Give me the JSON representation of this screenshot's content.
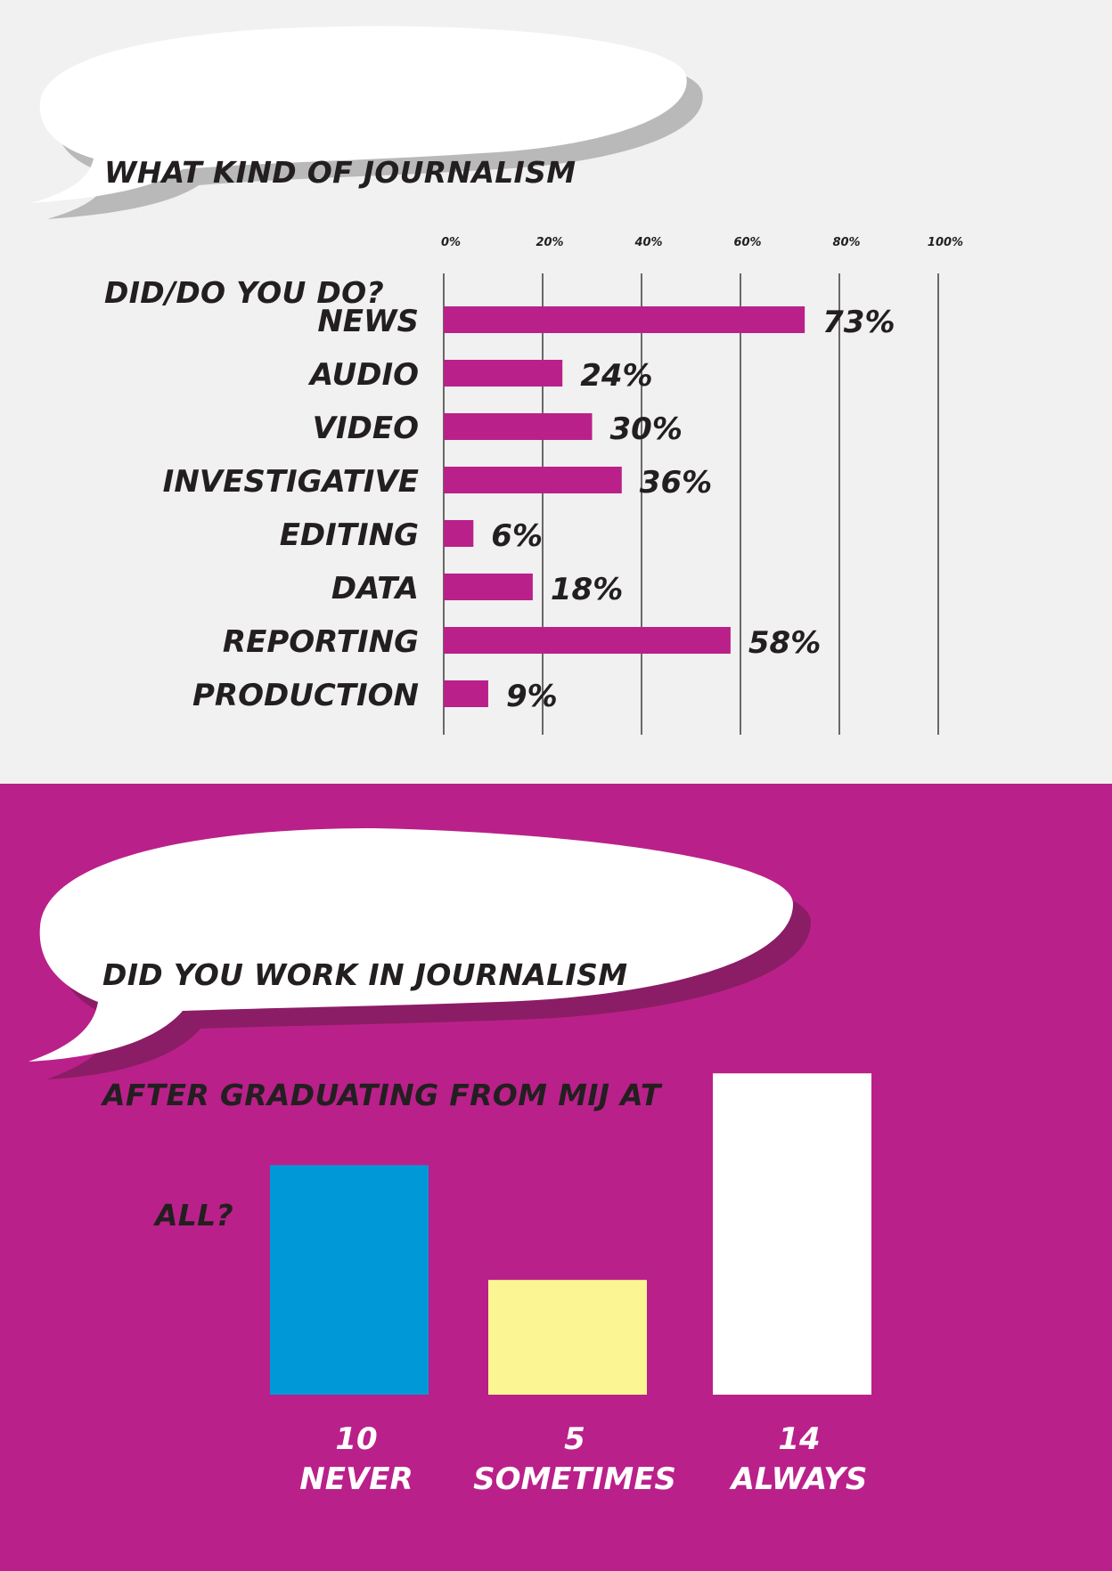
{
  "colors": {
    "top_background": "#f0f1f0",
    "bottom_background": "#ba208a",
    "bar_magenta": "#ba208a",
    "bubble": "#ffffff",
    "text": "#231f20"
  },
  "question1": {
    "lines": [
      "WHAT KIND OF JOURNALISM",
      "DID/DO YOU DO?"
    ]
  },
  "question2": {
    "lines": [
      "DID YOU WORK IN JOURNALISM",
      "AFTER GRADUATING FROM MIJ AT",
      "     ALL?"
    ]
  },
  "chart_data": [
    {
      "type": "bar",
      "orientation": "horizontal",
      "categories": [
        "NEWS",
        "AUDIO",
        "VIDEO",
        "INVESTIGATIVE",
        "EDITING",
        "DATA",
        "REPORTING",
        "PRODUCTION"
      ],
      "values": [
        73,
        24,
        30,
        36,
        6,
        18,
        58,
        9
      ],
      "value_labels": [
        "73%",
        "24%",
        "30%",
        "36%",
        "6%",
        "18%",
        "58%",
        "9%"
      ],
      "xlim": [
        0,
        100
      ],
      "xticks": [
        0,
        20,
        40,
        60,
        80,
        100
      ],
      "xtick_labels": [
        "0%",
        "20%",
        "40%",
        "60%",
        "80%",
        "100%"
      ],
      "grid": true,
      "color": "#ba208a"
    },
    {
      "type": "bar",
      "orientation": "vertical",
      "categories": [
        "NEVER",
        "SOMETIMES",
        "ALWAYS"
      ],
      "values": [
        10,
        5,
        14
      ],
      "value_labels": [
        "10",
        "5",
        "14"
      ],
      "colors": [
        "#0098d7",
        "#fcf594",
        "#ffffff"
      ],
      "grid": false
    }
  ]
}
